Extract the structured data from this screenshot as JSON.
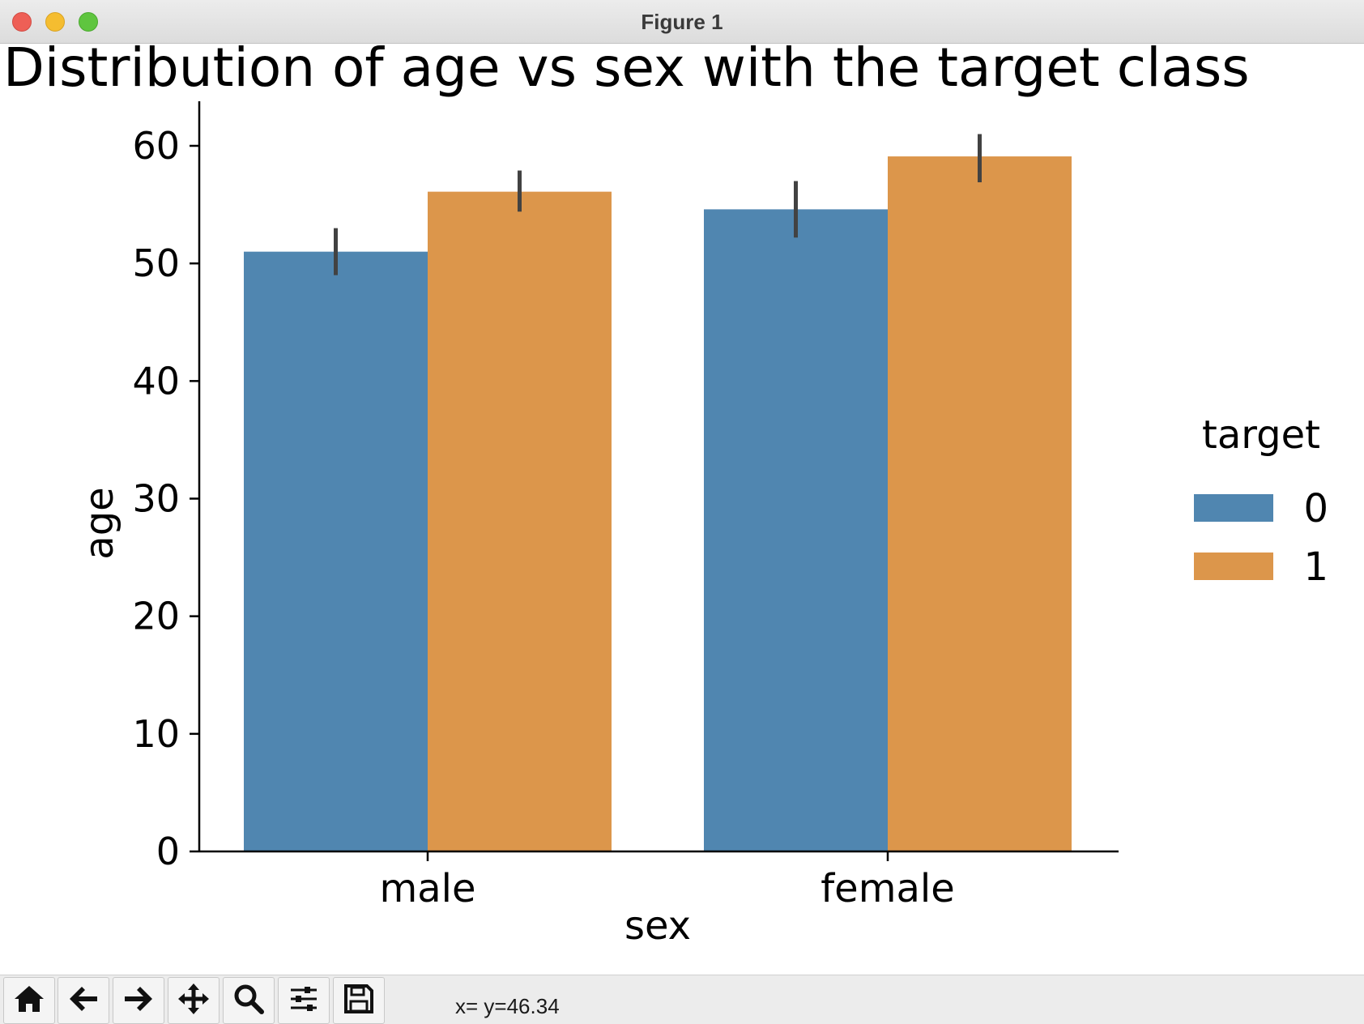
{
  "window": {
    "title": "Figure 1",
    "controls": [
      "close",
      "minimize",
      "maximize"
    ]
  },
  "chart_data": {
    "type": "bar",
    "title": "Distribution of age vs sex with the target class",
    "xlabel": "sex",
    "ylabel": "age",
    "categories": [
      "male",
      "female"
    ],
    "ylim": [
      0,
      63.5
    ],
    "yticks": [
      0,
      10,
      20,
      30,
      40,
      50,
      60
    ],
    "grid": false,
    "legend": {
      "title": "target",
      "placement": "right"
    },
    "series": [
      {
        "name": "0",
        "color": "#5086b0",
        "values": [
          51.0,
          54.6
        ],
        "ci_low": [
          49.0,
          52.2
        ],
        "ci_high": [
          53.0,
          57.0
        ]
      },
      {
        "name": "1",
        "color": "#dc964b",
        "values": [
          56.1,
          59.1
        ],
        "ci_low": [
          54.4,
          56.9
        ],
        "ci_high": [
          57.9,
          61.0
        ]
      }
    ],
    "errorbar_color": "#424242"
  },
  "toolbar": {
    "buttons": [
      {
        "name": "home-button",
        "icon": "home-icon"
      },
      {
        "name": "back-button",
        "icon": "arrow-left-icon"
      },
      {
        "name": "forward-button",
        "icon": "arrow-right-icon"
      },
      {
        "name": "pan-button",
        "icon": "move-icon"
      },
      {
        "name": "zoom-button",
        "icon": "magnifier-icon"
      },
      {
        "name": "configure-subplots-button",
        "icon": "sliders-icon"
      },
      {
        "name": "save-button",
        "icon": "floppy-disk-icon"
      }
    ],
    "coordinates": "x= y=46.34"
  }
}
